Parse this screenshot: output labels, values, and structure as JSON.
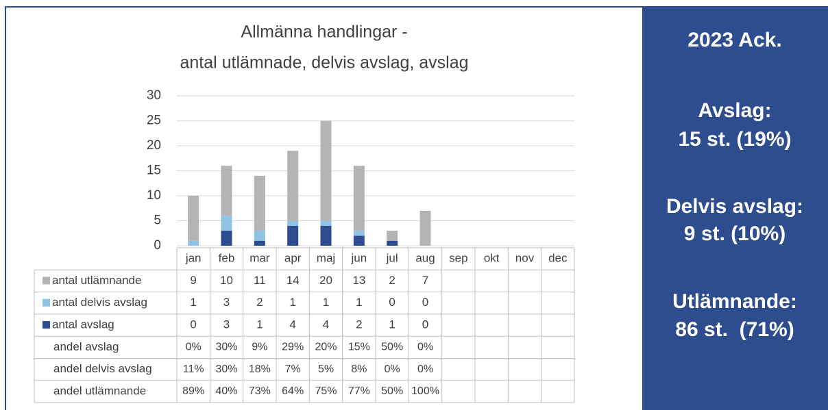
{
  "chart_data": {
    "type": "bar",
    "stacked": true,
    "title": [
      "Allmänna handlingar -",
      "antal utlämnade, delvis avslag, avslag"
    ],
    "categories": [
      "jan",
      "feb",
      "mar",
      "apr",
      "maj",
      "jun",
      "jul",
      "aug",
      "sep",
      "okt",
      "nov",
      "dec"
    ],
    "series": [
      {
        "name": "antal utlämnande",
        "color": "#b4b4b4",
        "values": [
          9,
          10,
          11,
          14,
          20,
          13,
          2,
          7,
          null,
          null,
          null,
          null
        ]
      },
      {
        "name": "antal delvis avslag",
        "color": "#8ec3e6",
        "values": [
          1,
          3,
          2,
          1,
          1,
          1,
          0,
          0,
          null,
          null,
          null,
          null
        ]
      },
      {
        "name": "antal avslag",
        "color": "#2e4d8f",
        "values": [
          0,
          3,
          1,
          4,
          4,
          2,
          1,
          0,
          null,
          null,
          null,
          null
        ]
      }
    ],
    "ylim": [
      0,
      30
    ],
    "yticks": [
      0,
      5,
      10,
      15,
      20,
      25,
      30
    ],
    "grid": true,
    "table_rows": [
      {
        "label": "andel avslag",
        "cells": [
          "0%",
          "30%",
          "9%",
          "29%",
          "20%",
          "15%",
          "50%",
          "0%"
        ]
      },
      {
        "label": "andel delvis avslag",
        "cells": [
          "11%",
          "30%",
          "18%",
          "7%",
          "5%",
          "8%",
          "0%",
          "0%"
        ]
      },
      {
        "label": "andel utlämnande",
        "cells": [
          "89%",
          "40%",
          "73%",
          "64%",
          "75%",
          "77%",
          "50%",
          "100%"
        ]
      }
    ]
  },
  "sidebar": {
    "heading": "2023 Ack.",
    "items": [
      {
        "label": "Avslag:",
        "value": "15 st. (19%)"
      },
      {
        "label": "Delvis avslag:",
        "value": "9 st. (10%)"
      },
      {
        "label": "Utlämnande:",
        "value": "86 st.  (71%)"
      }
    ]
  }
}
